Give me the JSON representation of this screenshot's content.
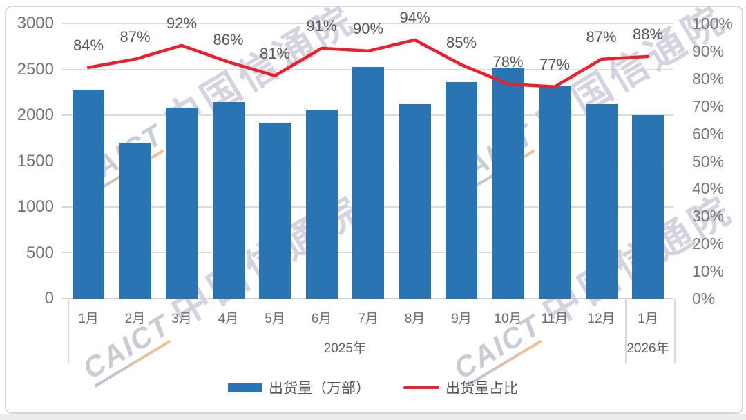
{
  "watermark": {
    "brand": "CAICT",
    "cn": "中国信通院"
  },
  "colors": {
    "bar": "#2a74b4",
    "line": "#e8212d",
    "grid": "#dcdcdc",
    "frame": "#d8d8d8",
    "data_label": "#595959",
    "axis_label": "#767676"
  },
  "legend": {
    "items": [
      {
        "label": "出货量（万部）",
        "type": "bar"
      },
      {
        "label": "出货量占比",
        "type": "line"
      }
    ]
  },
  "chart_data": {
    "type": "combo-bar-line",
    "title": "",
    "categories": [
      "1月",
      "2月",
      "3月",
      "4月",
      "5月",
      "6月",
      "7月",
      "8月",
      "9月",
      "10月",
      "11月",
      "12月",
      "1月"
    ],
    "year_groups": [
      {
        "label": "2025年",
        "from": 0,
        "to": 11
      },
      {
        "label": "2026年",
        "from": 12,
        "to": 12
      }
    ],
    "series": [
      {
        "name": "出货量（万部）",
        "chart_type": "bar",
        "axis": "left",
        "values": [
          2280,
          1700,
          2080,
          2140,
          1920,
          2060,
          2530,
          2120,
          2360,
          2520,
          2320,
          2120,
          2000
        ]
      },
      {
        "name": "出货量占比",
        "chart_type": "line",
        "axis": "right",
        "values": [
          84,
          87,
          92,
          86,
          81,
          91,
          90,
          94,
          85,
          78,
          77,
          87,
          88
        ],
        "data_labels": [
          "84%",
          "87%",
          "92%",
          "86%",
          "81%",
          "91%",
          "90%",
          "94%",
          "85%",
          "78%",
          "77%",
          "87%",
          "88%"
        ]
      }
    ],
    "left_axis": {
      "range": [
        0,
        3000
      ],
      "step": 500,
      "tick_labels": [
        "0",
        "500",
        "1000",
        "1500",
        "2000",
        "2500",
        "3000"
      ]
    },
    "right_axis": {
      "range": [
        0,
        100
      ],
      "step": 10,
      "tick_labels": [
        "0%",
        "10%",
        "20%",
        "30%",
        "40%",
        "50%",
        "60%",
        "70%",
        "80%",
        "90%",
        "100%"
      ]
    },
    "grid": true,
    "legend_position": "bottom"
  }
}
